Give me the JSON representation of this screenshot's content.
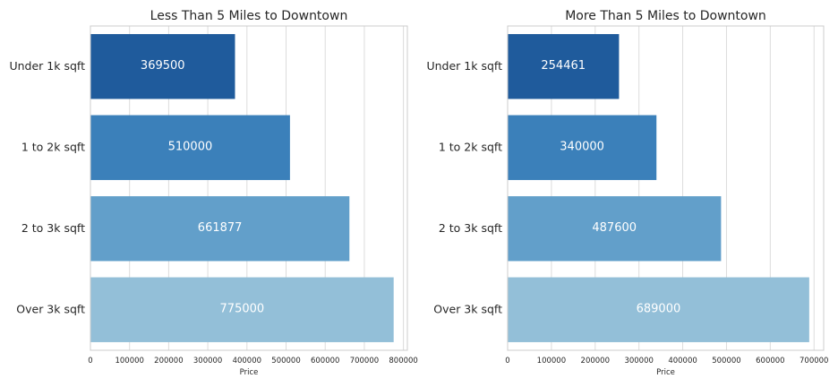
{
  "chart_data": [
    {
      "type": "bar",
      "orientation": "horizontal",
      "title": "Less Than 5 Miles to Downtown",
      "categories": [
        "Under 1k sqft",
        "1 to 2k sqft",
        "2 to 3k sqft",
        "Over 3k sqft"
      ],
      "values": [
        369500,
        510000,
        661877,
        775000
      ],
      "data_labels": [
        "369500",
        "510000",
        "661877",
        "775000"
      ],
      "xlabel": "Price",
      "ylabel": "",
      "xlim": [
        0,
        810000
      ],
      "xticks": [
        0,
        100000,
        200000,
        300000,
        400000,
        500000,
        600000,
        700000,
        800000
      ],
      "xtick_labels": [
        "0",
        "100000",
        "200000",
        "300000",
        "400000",
        "500000",
        "600000",
        "700000",
        "800000"
      ],
      "grid": true,
      "colors": [
        "#1f5b9c",
        "#3b80ba",
        "#629fca",
        "#93bfd8"
      ]
    },
    {
      "type": "bar",
      "orientation": "horizontal",
      "title": "More Than 5 Miles to Downtown",
      "categories": [
        "Under 1k sqft",
        "1 to 2k sqft",
        "2 to 3k sqft",
        "Over 3k sqft"
      ],
      "values": [
        254461,
        340000,
        487600,
        689000
      ],
      "data_labels": [
        "254461",
        "340000",
        "487600",
        "689000"
      ],
      "xlabel": "Price",
      "ylabel": "",
      "xlim": [
        0,
        722000
      ],
      "xticks": [
        0,
        100000,
        200000,
        300000,
        400000,
        500000,
        600000,
        700000
      ],
      "xtick_labels": [
        "0",
        "100000",
        "200000",
        "300000",
        "400000",
        "500000",
        "600000",
        "700000"
      ],
      "grid": true,
      "colors": [
        "#1f5b9c",
        "#3b80ba",
        "#629fca",
        "#93bfd8"
      ]
    }
  ]
}
